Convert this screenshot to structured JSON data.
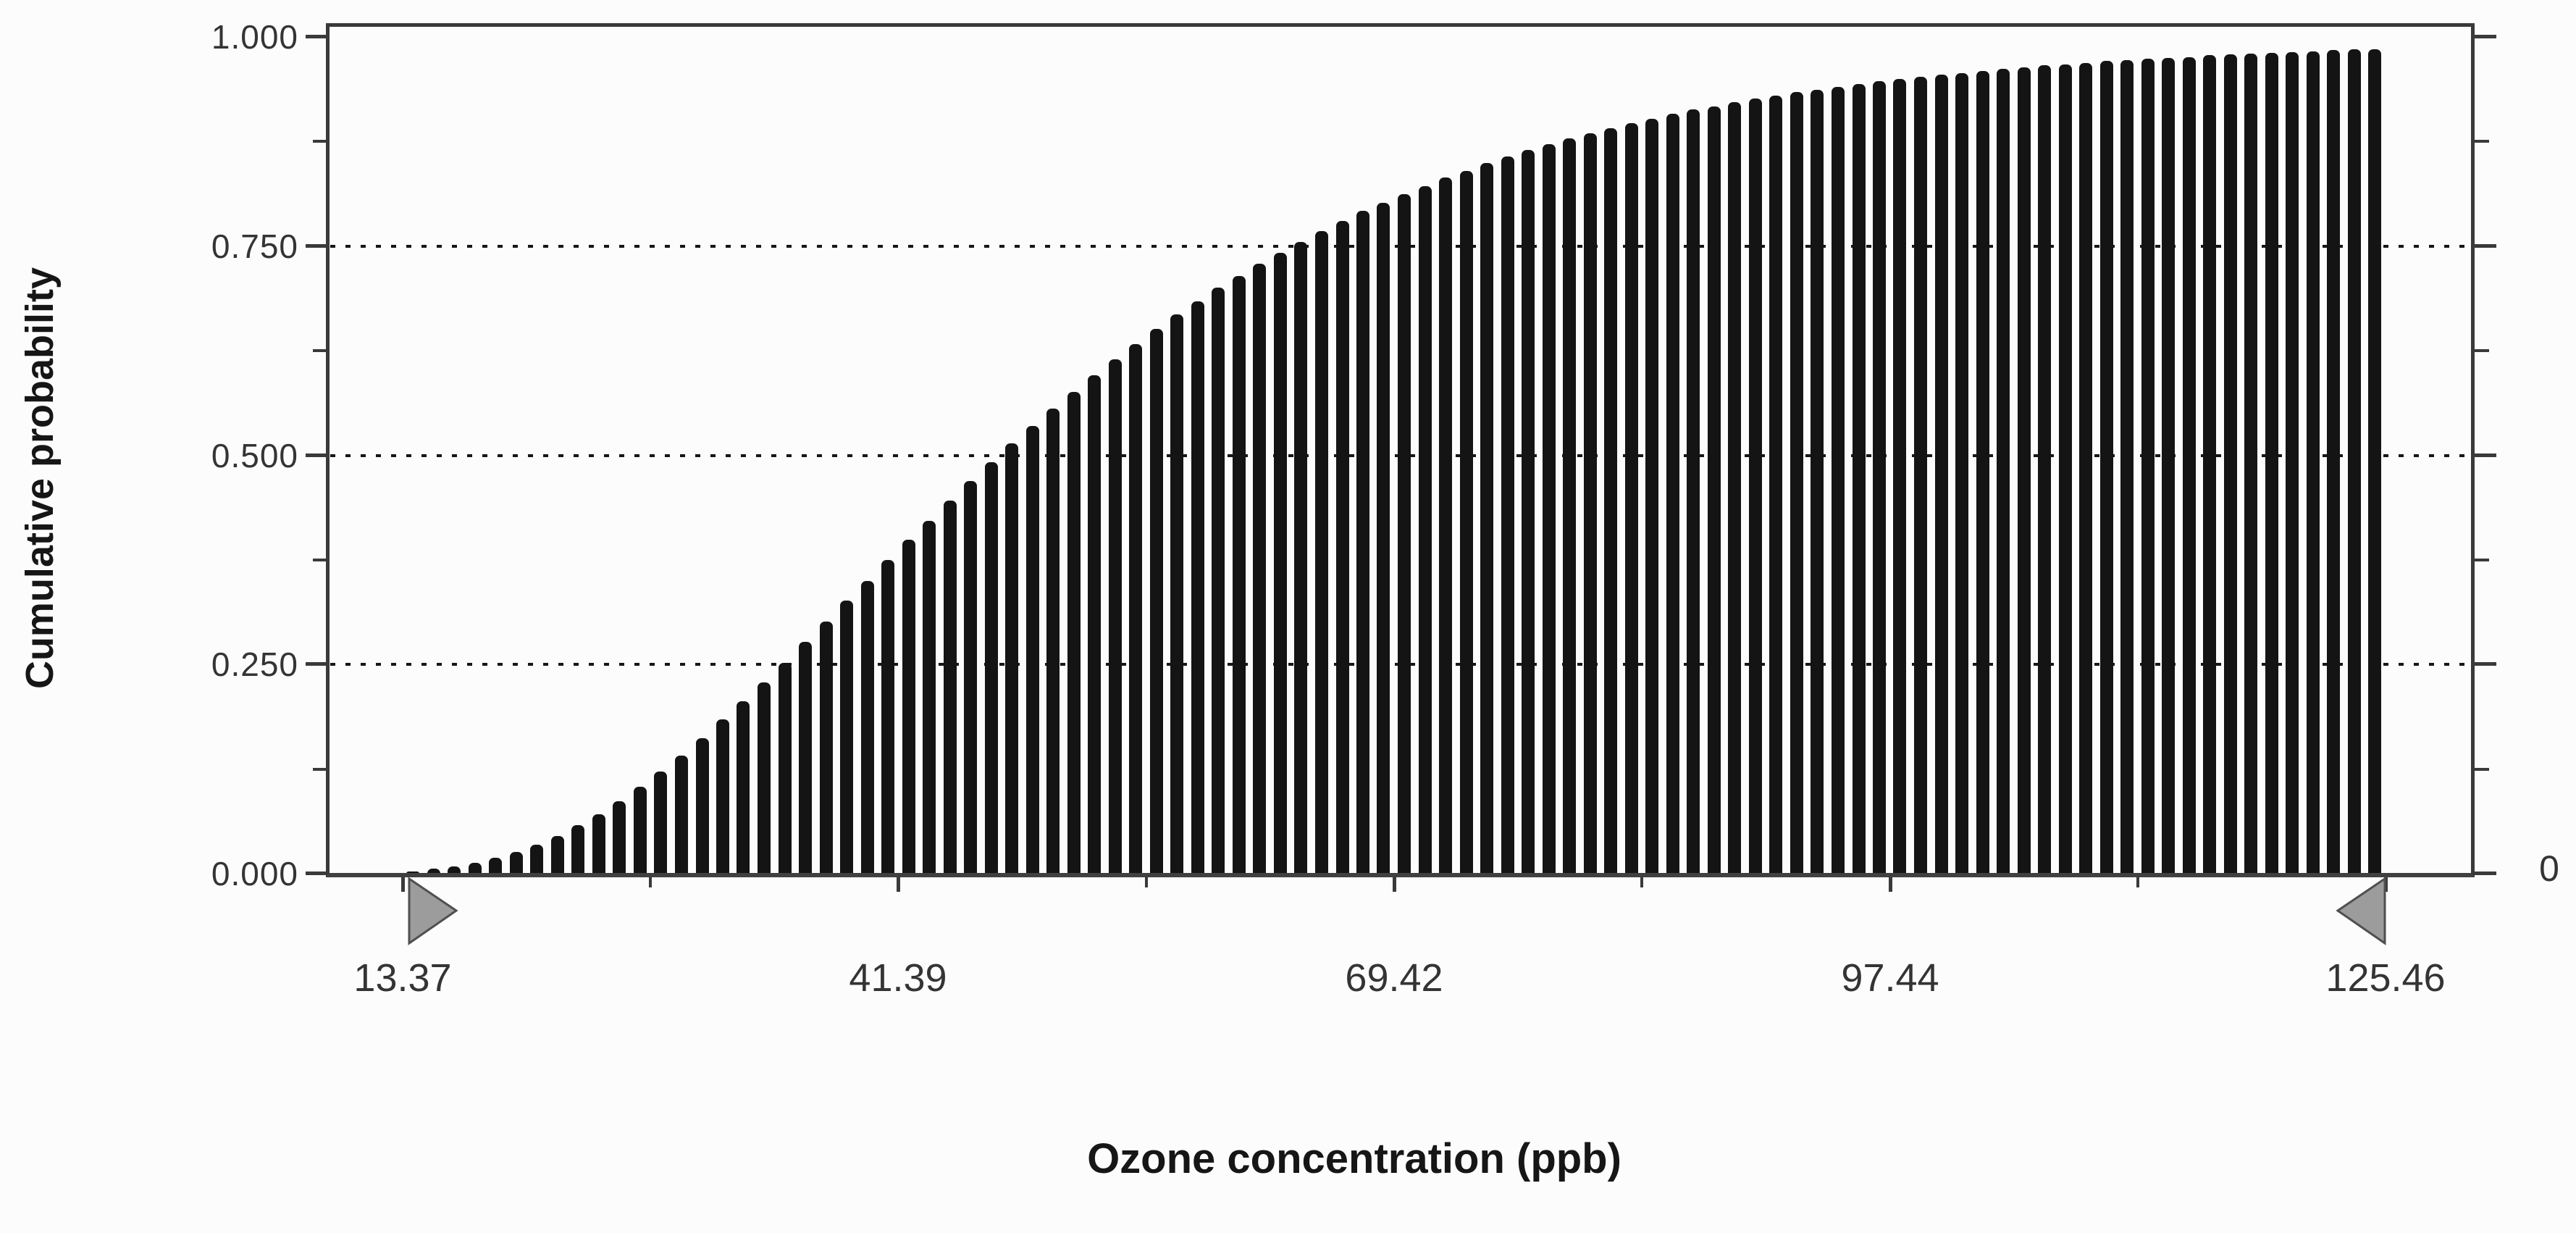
{
  "y_axis": {
    "title": "Cumulative probability",
    "tick_labels": [
      "0.000",
      "0.250",
      "0.500",
      "0.750",
      "1.000"
    ]
  },
  "x_axis": {
    "title": "Ozone concentration (ppb)",
    "tick_labels": [
      "13.37",
      "41.39",
      "69.42",
      "97.44",
      "125.46"
    ]
  },
  "right_axis": {
    "bottom_label": "0"
  },
  "sliders": {
    "left_value": "13.37",
    "right_value": "125.46"
  },
  "chart_data": {
    "type": "bar",
    "subtype": "cumulative-distribution",
    "title": "",
    "xlabel": "Ozone concentration (ppb)",
    "ylabel": "Cumulative probability",
    "ylim": [
      0,
      1
    ],
    "xlim": [
      9.0,
      130.5
    ],
    "x_ticks": [
      13.37,
      41.39,
      69.42,
      97.44,
      125.46
    ],
    "x_tick_labels": [
      "13.37",
      "41.39",
      "69.42",
      "97.44",
      "125.46"
    ],
    "x_minor_ticks": [
      27.38,
      55.41,
      83.43,
      111.45
    ],
    "y_ticks": [
      0,
      0.25,
      0.5,
      0.75,
      1
    ],
    "y_tick_labels": [
      "0.000",
      "0.250",
      "0.500",
      "0.750",
      "1.000"
    ],
    "y_minor_ticks": [
      0.125,
      0.375,
      0.625,
      0.875
    ],
    "gridlines_y": [
      0.25,
      0.5,
      0.75
    ],
    "grid_style": "dotted",
    "legend_position": "none",
    "bar_color": "#141414",
    "slider_marker_values": [
      13.37,
      125.46
    ],
    "right_axis_bottom_value": 0,
    "x": [
      13.95,
      15.12,
      16.29,
      17.45,
      18.62,
      19.79,
      20.96,
      22.12,
      23.29,
      24.46,
      25.63,
      26.79,
      27.96,
      29.13,
      30.3,
      31.46,
      32.63,
      33.8,
      34.97,
      36.13,
      37.3,
      38.47,
      39.64,
      40.8,
      41.97,
      43.14,
      44.31,
      45.47,
      46.64,
      47.81,
      48.98,
      50.14,
      51.31,
      52.48,
      53.65,
      54.81,
      55.98,
      57.15,
      58.32,
      59.48,
      60.65,
      61.82,
      62.99,
      64.15,
      65.32,
      66.49,
      67.66,
      68.82,
      69.99,
      71.16,
      72.33,
      73.49,
      74.66,
      75.83,
      77.0,
      78.16,
      79.33,
      80.5,
      81.67,
      82.83,
      84.0,
      85.17,
      86.34,
      87.5,
      88.67,
      89.84,
      91.01,
      92.17,
      93.34,
      94.51,
      95.68,
      96.84,
      98.01,
      99.18,
      100.35,
      101.51,
      102.68,
      103.85,
      105.02,
      106.18,
      107.35,
      108.52,
      109.69,
      110.85,
      112.02,
      113.19,
      114.36,
      115.52,
      116.69,
      117.86,
      119.03,
      120.19,
      121.36,
      122.53,
      123.7,
      124.86
    ],
    "values": [
      0.003,
      0.006,
      0.009,
      0.013,
      0.019,
      0.026,
      0.035,
      0.045,
      0.058,
      0.071,
      0.087,
      0.104,
      0.122,
      0.141,
      0.162,
      0.184,
      0.206,
      0.229,
      0.252,
      0.277,
      0.301,
      0.326,
      0.35,
      0.375,
      0.399,
      0.422,
      0.446,
      0.469,
      0.492,
      0.514,
      0.535,
      0.556,
      0.576,
      0.596,
      0.615,
      0.633,
      0.651,
      0.668,
      0.684,
      0.7,
      0.714,
      0.729,
      0.742,
      0.755,
      0.768,
      0.78,
      0.792,
      0.802,
      0.812,
      0.822,
      0.832,
      0.84,
      0.849,
      0.857,
      0.865,
      0.872,
      0.879,
      0.885,
      0.891,
      0.897,
      0.902,
      0.908,
      0.913,
      0.917,
      0.922,
      0.926,
      0.93,
      0.934,
      0.937,
      0.94,
      0.944,
      0.947,
      0.95,
      0.952,
      0.955,
      0.957,
      0.959,
      0.962,
      0.964,
      0.966,
      0.967,
      0.969,
      0.971,
      0.972,
      0.974,
      0.975,
      0.976,
      0.978,
      0.979,
      0.98,
      0.981,
      0.982,
      0.983,
      0.984,
      0.985,
      0.985
    ]
  }
}
